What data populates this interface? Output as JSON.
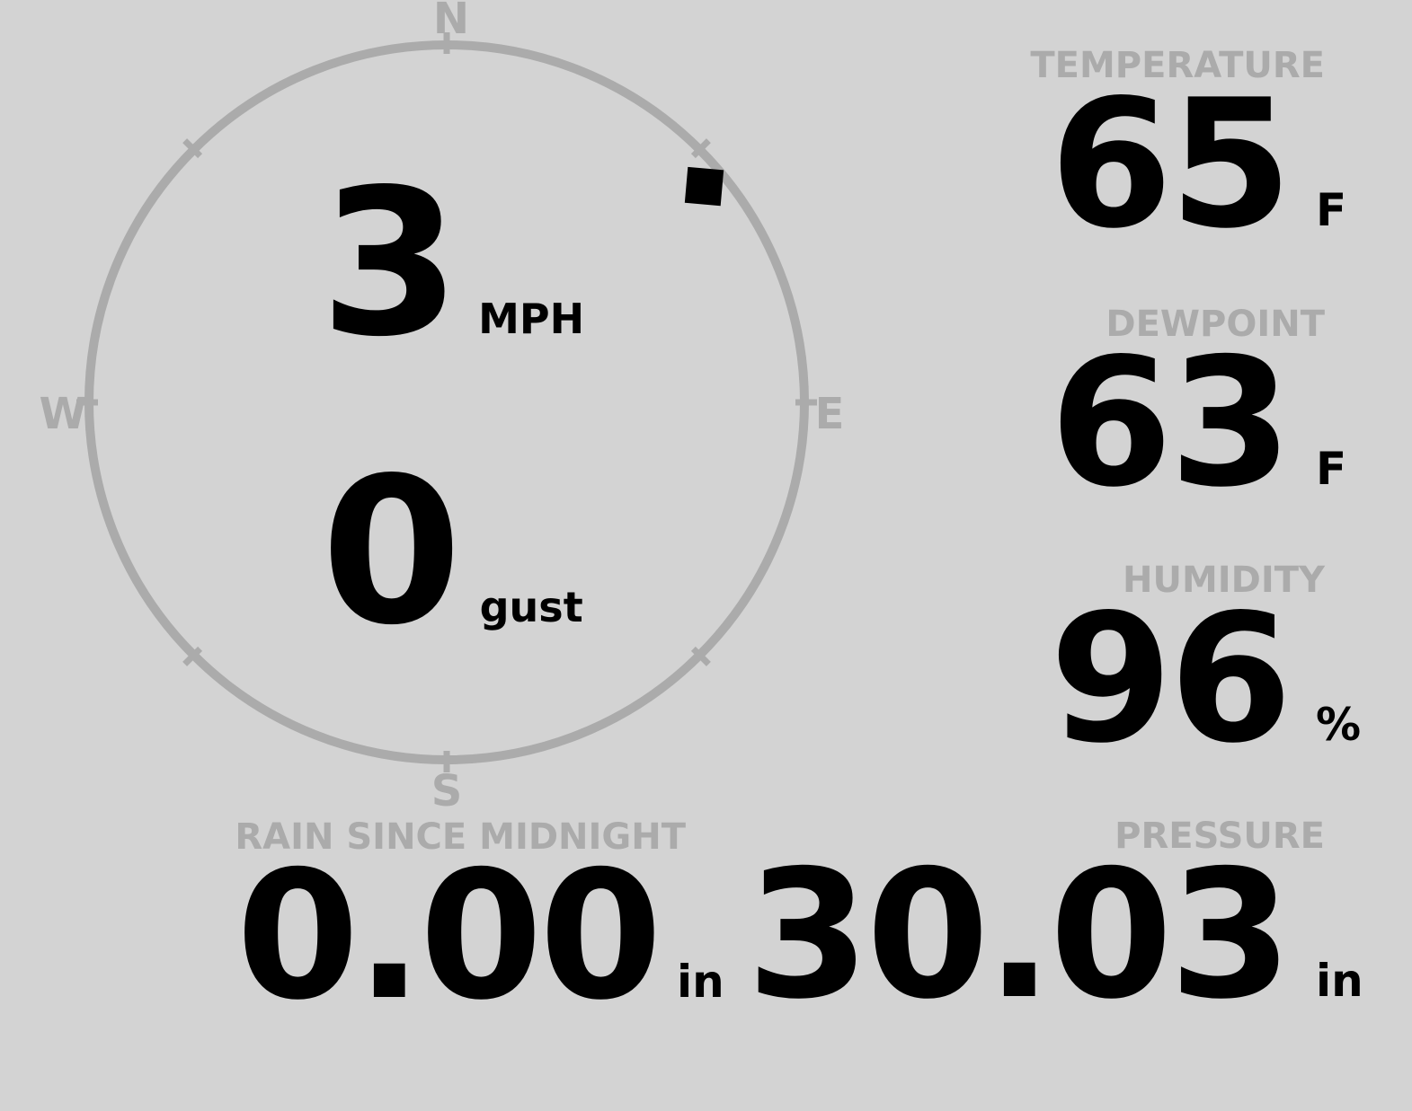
{
  "colors": {
    "background": "#d3d3d3",
    "muted": "#ababab",
    "ink": "#000000"
  },
  "compass": {
    "north_label": "N",
    "east_label": "E",
    "south_label": "S",
    "west_label": "W",
    "wind_direction_deg": 50,
    "speed": {
      "value": "3",
      "unit": "MPH"
    },
    "gust": {
      "value": "0",
      "unit": "gust"
    }
  },
  "stats": {
    "temperature": {
      "label": "TEMPERATURE",
      "value": "65",
      "unit": "F"
    },
    "dewpoint": {
      "label": "DEWPOINT",
      "value": "63",
      "unit": "F"
    },
    "humidity": {
      "label": "HUMIDITY",
      "value": "96",
      "unit": "%"
    },
    "pressure": {
      "label": "PRESSURE",
      "value": "30.03",
      "unit": "in"
    },
    "rain_since_midnight": {
      "label": "RAIN SINCE MIDNIGHT",
      "value": "0.00",
      "unit": "in"
    }
  }
}
